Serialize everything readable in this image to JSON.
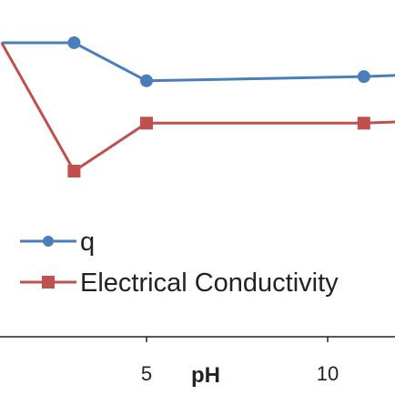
{
  "chart_data": {
    "type": "line",
    "xlabel": "pH",
    "x_ticks": [
      5,
      10
    ],
    "series": [
      {
        "name": "q",
        "color": "#4a7ebb",
        "marker": "circle",
        "points": [
          [
            1,
            0.91
          ],
          [
            3,
            0.91
          ],
          [
            5,
            0.64
          ],
          [
            11,
            0.67
          ],
          [
            12,
            0.68
          ]
        ]
      },
      {
        "name": "Electrical Conductivity",
        "color": "#c0504d",
        "marker": "square",
        "points": [
          [
            1,
            0.91
          ],
          [
            3,
            0.0
          ],
          [
            5,
            0.34
          ],
          [
            11,
            0.34
          ],
          [
            12,
            0.35
          ]
        ]
      }
    ],
    "legend": "left",
    "grid": false
  }
}
